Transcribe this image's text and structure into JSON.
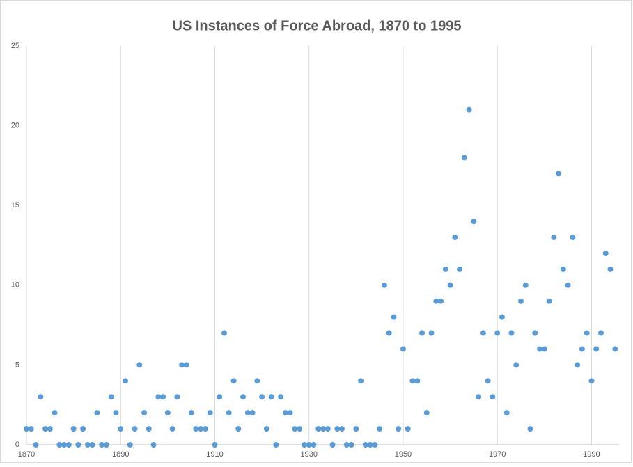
{
  "chart_data": {
    "type": "scatter",
    "title": "US Instances of Force Abroad, 1870 to 1995",
    "series": [
      {
        "color": "#5b9bd5",
        "x": [
          1870,
          1871,
          1872,
          1873,
          1874,
          1875,
          1876,
          1877,
          1878,
          1879,
          1880,
          1881,
          1882,
          1883,
          1884,
          1885,
          1886,
          1887,
          1888,
          1889,
          1890,
          1891,
          1892,
          1893,
          1894,
          1895,
          1896,
          1897,
          1898,
          1899,
          1900,
          1901,
          1902,
          1903,
          1904,
          1905,
          1906,
          1907,
          1908,
          1909,
          1910,
          1911,
          1912,
          1913,
          1914,
          1915,
          1916,
          1917,
          1918,
          1919,
          1920,
          1921,
          1922,
          1923,
          1924,
          1925,
          1926,
          1927,
          1928,
          1929,
          1930,
          1931,
          1932,
          1933,
          1934,
          1935,
          1936,
          1937,
          1938,
          1939,
          1940,
          1941,
          1942,
          1943,
          1944,
          1945,
          1946,
          1947,
          1948,
          1949,
          1950,
          1951,
          1952,
          1953,
          1954,
          1955,
          1956,
          1957,
          1958,
          1959,
          1960,
          1961,
          1962,
          1963,
          1964,
          1965,
          1966,
          1967,
          1968,
          1969,
          1970,
          1971,
          1972,
          1973,
          1974,
          1975,
          1976,
          1977,
          1978,
          1979,
          1980,
          1981,
          1982,
          1983,
          1984,
          1985,
          1986,
          1987,
          1988,
          1989,
          1990,
          1991,
          1992,
          1993,
          1994,
          1995
        ],
        "values": [
          1,
          1,
          0,
          3,
          1,
          1,
          2,
          0,
          0,
          0,
          1,
          0,
          1,
          0,
          0,
          2,
          0,
          0,
          3,
          2,
          1,
          4,
          0,
          1,
          5,
          2,
          1,
          0,
          3,
          3,
          2,
          1,
          3,
          5,
          5,
          2,
          1,
          1,
          1,
          2,
          0,
          3,
          7,
          2,
          4,
          1,
          3,
          2,
          2,
          4,
          3,
          1,
          3,
          0,
          3,
          2,
          2,
          1,
          1,
          0,
          0,
          0,
          1,
          1,
          1,
          0,
          1,
          1,
          0,
          0,
          1,
          4,
          0,
          0,
          0,
          1,
          10,
          7,
          8,
          1,
          6,
          1,
          4,
          4,
          7,
          2,
          7,
          9,
          9,
          11,
          10,
          13,
          11,
          18,
          21,
          14,
          3,
          7,
          4,
          3,
          7,
          8,
          2,
          7,
          5,
          9,
          10,
          1,
          7,
          6,
          6,
          9,
          13,
          17,
          11,
          10,
          13,
          5,
          6,
          7,
          4,
          6,
          7,
          12,
          11,
          6
        ]
      }
    ],
    "xlim": [
      1870,
      1996
    ],
    "xticks": [
      1870,
      1890,
      1910,
      1930,
      1950,
      1970,
      1990
    ],
    "ylim": [
      0,
      25
    ],
    "yticks": [
      0,
      5,
      10,
      15,
      20,
      25
    ],
    "grid": "x"
  }
}
